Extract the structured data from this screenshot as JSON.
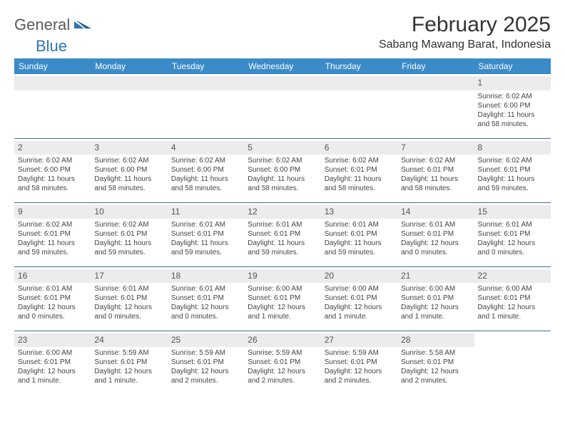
{
  "logo": {
    "word1": "General",
    "word2": "Blue",
    "color1": "#5a5a5a",
    "color2": "#2e75b6"
  },
  "title": "February 2025",
  "location": "Sabang Mawang Barat, Indonesia",
  "header_bg": "#3b8bc9",
  "header_fg": "#ffffff",
  "daynum_bg": "#ececec",
  "separator_color": "#4a6a8a",
  "day_headers": [
    "Sunday",
    "Monday",
    "Tuesday",
    "Wednesday",
    "Thursday",
    "Friday",
    "Saturday"
  ],
  "weeks": [
    [
      null,
      null,
      null,
      null,
      null,
      null,
      {
        "n": "1",
        "sr": "Sunrise: 6:02 AM",
        "ss": "Sunset: 6:00 PM",
        "d1": "Daylight: 11 hours",
        "d2": "and 58 minutes."
      }
    ],
    [
      {
        "n": "2",
        "sr": "Sunrise: 6:02 AM",
        "ss": "Sunset: 6:00 PM",
        "d1": "Daylight: 11 hours",
        "d2": "and 58 minutes."
      },
      {
        "n": "3",
        "sr": "Sunrise: 6:02 AM",
        "ss": "Sunset: 6:00 PM",
        "d1": "Daylight: 11 hours",
        "d2": "and 58 minutes."
      },
      {
        "n": "4",
        "sr": "Sunrise: 6:02 AM",
        "ss": "Sunset: 6:00 PM",
        "d1": "Daylight: 11 hours",
        "d2": "and 58 minutes."
      },
      {
        "n": "5",
        "sr": "Sunrise: 6:02 AM",
        "ss": "Sunset: 6:00 PM",
        "d1": "Daylight: 11 hours",
        "d2": "and 58 minutes."
      },
      {
        "n": "6",
        "sr": "Sunrise: 6:02 AM",
        "ss": "Sunset: 6:01 PM",
        "d1": "Daylight: 11 hours",
        "d2": "and 58 minutes."
      },
      {
        "n": "7",
        "sr": "Sunrise: 6:02 AM",
        "ss": "Sunset: 6:01 PM",
        "d1": "Daylight: 11 hours",
        "d2": "and 58 minutes."
      },
      {
        "n": "8",
        "sr": "Sunrise: 6:02 AM",
        "ss": "Sunset: 6:01 PM",
        "d1": "Daylight: 11 hours",
        "d2": "and 59 minutes."
      }
    ],
    [
      {
        "n": "9",
        "sr": "Sunrise: 6:02 AM",
        "ss": "Sunset: 6:01 PM",
        "d1": "Daylight: 11 hours",
        "d2": "and 59 minutes."
      },
      {
        "n": "10",
        "sr": "Sunrise: 6:02 AM",
        "ss": "Sunset: 6:01 PM",
        "d1": "Daylight: 11 hours",
        "d2": "and 59 minutes."
      },
      {
        "n": "11",
        "sr": "Sunrise: 6:01 AM",
        "ss": "Sunset: 6:01 PM",
        "d1": "Daylight: 11 hours",
        "d2": "and 59 minutes."
      },
      {
        "n": "12",
        "sr": "Sunrise: 6:01 AM",
        "ss": "Sunset: 6:01 PM",
        "d1": "Daylight: 11 hours",
        "d2": "and 59 minutes."
      },
      {
        "n": "13",
        "sr": "Sunrise: 6:01 AM",
        "ss": "Sunset: 6:01 PM",
        "d1": "Daylight: 11 hours",
        "d2": "and 59 minutes."
      },
      {
        "n": "14",
        "sr": "Sunrise: 6:01 AM",
        "ss": "Sunset: 6:01 PM",
        "d1": "Daylight: 12 hours",
        "d2": "and 0 minutes."
      },
      {
        "n": "15",
        "sr": "Sunrise: 6:01 AM",
        "ss": "Sunset: 6:01 PM",
        "d1": "Daylight: 12 hours",
        "d2": "and 0 minutes."
      }
    ],
    [
      {
        "n": "16",
        "sr": "Sunrise: 6:01 AM",
        "ss": "Sunset: 6:01 PM",
        "d1": "Daylight: 12 hours",
        "d2": "and 0 minutes."
      },
      {
        "n": "17",
        "sr": "Sunrise: 6:01 AM",
        "ss": "Sunset: 6:01 PM",
        "d1": "Daylight: 12 hours",
        "d2": "and 0 minutes."
      },
      {
        "n": "18",
        "sr": "Sunrise: 6:01 AM",
        "ss": "Sunset: 6:01 PM",
        "d1": "Daylight: 12 hours",
        "d2": "and 0 minutes."
      },
      {
        "n": "19",
        "sr": "Sunrise: 6:00 AM",
        "ss": "Sunset: 6:01 PM",
        "d1": "Daylight: 12 hours",
        "d2": "and 1 minute."
      },
      {
        "n": "20",
        "sr": "Sunrise: 6:00 AM",
        "ss": "Sunset: 6:01 PM",
        "d1": "Daylight: 12 hours",
        "d2": "and 1 minute."
      },
      {
        "n": "21",
        "sr": "Sunrise: 6:00 AM",
        "ss": "Sunset: 6:01 PM",
        "d1": "Daylight: 12 hours",
        "d2": "and 1 minute."
      },
      {
        "n": "22",
        "sr": "Sunrise: 6:00 AM",
        "ss": "Sunset: 6:01 PM",
        "d1": "Daylight: 12 hours",
        "d2": "and 1 minute."
      }
    ],
    [
      {
        "n": "23",
        "sr": "Sunrise: 6:00 AM",
        "ss": "Sunset: 6:01 PM",
        "d1": "Daylight: 12 hours",
        "d2": "and 1 minute."
      },
      {
        "n": "24",
        "sr": "Sunrise: 5:59 AM",
        "ss": "Sunset: 6:01 PM",
        "d1": "Daylight: 12 hours",
        "d2": "and 1 minute."
      },
      {
        "n": "25",
        "sr": "Sunrise: 5:59 AM",
        "ss": "Sunset: 6:01 PM",
        "d1": "Daylight: 12 hours",
        "d2": "and 2 minutes."
      },
      {
        "n": "26",
        "sr": "Sunrise: 5:59 AM",
        "ss": "Sunset: 6:01 PM",
        "d1": "Daylight: 12 hours",
        "d2": "and 2 minutes."
      },
      {
        "n": "27",
        "sr": "Sunrise: 5:59 AM",
        "ss": "Sunset: 6:01 PM",
        "d1": "Daylight: 12 hours",
        "d2": "and 2 minutes."
      },
      {
        "n": "28",
        "sr": "Sunrise: 5:58 AM",
        "ss": "Sunset: 6:01 PM",
        "d1": "Daylight: 12 hours",
        "d2": "and 2 minutes."
      },
      null
    ]
  ]
}
